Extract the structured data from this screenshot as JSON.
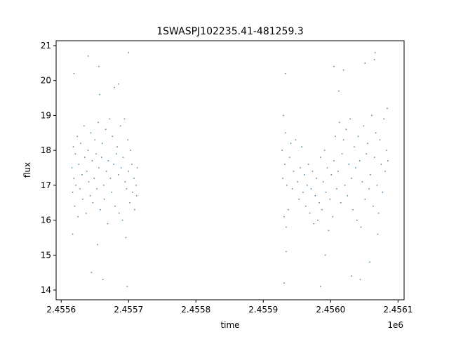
{
  "chart_data": {
    "type": "scatter",
    "title": "1SWASPJ102235.41-481259.3",
    "xlabel": "time",
    "ylabel": "flux",
    "x_offset_label": "1e6",
    "xlim": [
      2455592.5,
      2456109.0
    ],
    "ylim": [
      13.72,
      21.14
    ],
    "x_ticks": [
      {
        "value": 2455600,
        "label": "2.4556"
      },
      {
        "value": 2455700,
        "label": "2.4557"
      },
      {
        "value": 2455800,
        "label": "2.4558"
      },
      {
        "value": 2455900,
        "label": "2.4559"
      },
      {
        "value": 2456000,
        "label": "2.4560"
      },
      {
        "value": 2456100,
        "label": "2.4561"
      }
    ],
    "y_ticks": [
      {
        "value": 14,
        "label": "14"
      },
      {
        "value": 15,
        "label": "15"
      },
      {
        "value": 16,
        "label": "16"
      },
      {
        "value": 17,
        "label": "17"
      },
      {
        "value": 18,
        "label": "18"
      },
      {
        "value": 19,
        "label": "19"
      },
      {
        "value": 20,
        "label": "20"
      },
      {
        "value": 21,
        "label": "21"
      }
    ],
    "grid": false,
    "point_color": "#1f77b4",
    "series": [
      {
        "points": [
          [
            2455616,
            17.5
          ],
          [
            2455617,
            16.8
          ],
          [
            2455618,
            18.1
          ],
          [
            2455619,
            17.2
          ],
          [
            2455620,
            16.4
          ],
          [
            2455621,
            17.9
          ],
          [
            2455622,
            17.0
          ],
          [
            2455624,
            18.4
          ],
          [
            2455625,
            16.1
          ],
          [
            2455626,
            17.6
          ],
          [
            2455628,
            16.9
          ],
          [
            2455629,
            18.2
          ],
          [
            2455631,
            17.3
          ],
          [
            2455632,
            16.6
          ],
          [
            2455634,
            18.7
          ],
          [
            2455635,
            17.8
          ],
          [
            2455637,
            16.2
          ],
          [
            2455638,
            17.4
          ],
          [
            2455640,
            18.0
          ],
          [
            2455641,
            17.1
          ],
          [
            2455643,
            16.7
          ],
          [
            2455644,
            18.5
          ],
          [
            2455646,
            17.7
          ],
          [
            2455647,
            16.5
          ],
          [
            2455649,
            17.2
          ],
          [
            2455650,
            18.3
          ],
          [
            2455652,
            17.9
          ],
          [
            2455653,
            16.9
          ],
          [
            2455655,
            18.8
          ],
          [
            2455656,
            17.5
          ],
          [
            2455657,
            19.6
          ],
          [
            2455658,
            16.3
          ],
          [
            2455660,
            17.8
          ],
          [
            2455661,
            18.2
          ],
          [
            2455663,
            17.0
          ],
          [
            2455664,
            16.6
          ],
          [
            2455666,
            18.6
          ],
          [
            2455667,
            17.4
          ],
          [
            2455669,
            15.9
          ],
          [
            2455670,
            17.7
          ],
          [
            2455672,
            18.9
          ],
          [
            2455673,
            17.2
          ],
          [
            2455675,
            16.8
          ],
          [
            2455676,
            18.4
          ],
          [
            2455678,
            17.6
          ],
          [
            2455679,
            19.8
          ],
          [
            2455680,
            16.4
          ],
          [
            2455682,
            17.9
          ],
          [
            2455683,
            18.1
          ],
          [
            2455685,
            17.3
          ],
          [
            2455686,
            16.2
          ],
          [
            2455688,
            18.7
          ],
          [
            2455689,
            17.5
          ],
          [
            2455691,
            16.0
          ],
          [
            2455692,
            17.8
          ],
          [
            2455694,
            18.9
          ],
          [
            2455695,
            17.1
          ],
          [
            2455696,
            15.5
          ],
          [
            2455697,
            16.9
          ],
          [
            2455699,
            18.3
          ],
          [
            2455700,
            17.4
          ],
          [
            2455702,
            16.5
          ],
          [
            2455703,
            18.0
          ],
          [
            2455705,
            17.6
          ],
          [
            2455706,
            16.8
          ],
          [
            2455708,
            17.2
          ],
          [
            2455709,
            16.3
          ],
          [
            2455711,
            17.0
          ],
          [
            2455712,
            16.7
          ],
          [
            2455713,
            17.5
          ],
          [
            2455617,
            15.6
          ],
          [
            2455645,
            14.5
          ],
          [
            2455662,
            14.3
          ],
          [
            2455698,
            14.1
          ],
          [
            2455640,
            20.7
          ],
          [
            2455656,
            20.4
          ],
          [
            2455685,
            19.9
          ],
          [
            2455619,
            20.2
          ],
          [
            2455700,
            20.8
          ],
          [
            2455654,
            15.3
          ],
          [
            2455928,
            18.0
          ],
          [
            2455929,
            17.2
          ],
          [
            2455930,
            19.0
          ],
          [
            2455931,
            16.1
          ],
          [
            2455932,
            17.6
          ],
          [
            2455933,
            18.5
          ],
          [
            2455934,
            15.8
          ],
          [
            2455935,
            17.0
          ],
          [
            2455937,
            16.3
          ],
          [
            2455939,
            17.8
          ],
          [
            2455941,
            18.2
          ],
          [
            2455943,
            16.9
          ],
          [
            2455945,
            17.4
          ],
          [
            2455948,
            18.3
          ],
          [
            2455951,
            17.1
          ],
          [
            2455953,
            16.6
          ],
          [
            2455955,
            17.5
          ],
          [
            2455957,
            18.1
          ],
          [
            2455959,
            16.8
          ],
          [
            2455961,
            17.3
          ],
          [
            2455963,
            16.4
          ],
          [
            2455965,
            17.0
          ],
          [
            2455967,
            17.6
          ],
          [
            2455969,
            16.2
          ],
          [
            2455971,
            16.9
          ],
          [
            2455973,
            17.4
          ],
          [
            2455975,
            15.9
          ],
          [
            2455977,
            16.7
          ],
          [
            2455979,
            17.2
          ],
          [
            2455981,
            16.0
          ],
          [
            2455983,
            16.5
          ],
          [
            2455985,
            17.8
          ],
          [
            2455987,
            16.3
          ],
          [
            2455989,
            17.1
          ],
          [
            2455991,
            18.0
          ],
          [
            2455993,
            16.8
          ],
          [
            2455995,
            17.5
          ],
          [
            2455997,
            15.7
          ],
          [
            2455999,
            16.6
          ],
          [
            2456001,
            17.3
          ],
          [
            2456003,
            16.1
          ],
          [
            2456005,
            17.7
          ],
          [
            2456007,
            18.4
          ],
          [
            2456009,
            16.9
          ],
          [
            2456011,
            17.4
          ],
          [
            2456013,
            18.8
          ],
          [
            2456015,
            16.5
          ],
          [
            2456017,
            17.9
          ],
          [
            2456019,
            18.3
          ],
          [
            2456021,
            17.0
          ],
          [
            2456023,
            18.6
          ],
          [
            2456025,
            16.7
          ],
          [
            2456027,
            17.6
          ],
          [
            2456029,
            18.9
          ],
          [
            2456031,
            17.2
          ],
          [
            2456033,
            16.3
          ],
          [
            2456035,
            18.1
          ],
          [
            2456037,
            17.5
          ],
          [
            2456039,
            16.0
          ],
          [
            2456041,
            18.4
          ],
          [
            2456043,
            17.7
          ],
          [
            2456045,
            15.8
          ],
          [
            2456047,
            17.1
          ],
          [
            2456049,
            18.7
          ],
          [
            2456051,
            16.6
          ],
          [
            2456053,
            17.9
          ],
          [
            2456055,
            18.2
          ],
          [
            2456057,
            16.9
          ],
          [
            2456059,
            17.3
          ],
          [
            2456061,
            19.0
          ],
          [
            2456063,
            16.4
          ],
          [
            2456065,
            17.8
          ],
          [
            2456067,
            18.5
          ],
          [
            2456069,
            17.0
          ],
          [
            2456071,
            16.2
          ],
          [
            2456073,
            18.3
          ],
          [
            2456075,
            17.6
          ],
          [
            2456077,
            16.8
          ],
          [
            2456079,
            18.9
          ],
          [
            2456081,
            17.4
          ],
          [
            2456083,
            18.0
          ],
          [
            2456084,
            19.2
          ],
          [
            2456085,
            17.7
          ],
          [
            2455933,
            20.2
          ],
          [
            2455931,
            14.2
          ],
          [
            2455934,
            15.1
          ],
          [
            2455985,
            14.1
          ],
          [
            2455992,
            15.0
          ],
          [
            2456005,
            20.4
          ],
          [
            2456019,
            20.3
          ],
          [
            2456044,
            14.3
          ],
          [
            2456051,
            20.5
          ],
          [
            2456058,
            14.8
          ],
          [
            2456065,
            20.6
          ],
          [
            2456066,
            20.8
          ],
          [
            2456031,
            14.4
          ],
          [
            2456070,
            15.6
          ],
          [
            2456012,
            19.7
          ]
        ]
      }
    ]
  }
}
